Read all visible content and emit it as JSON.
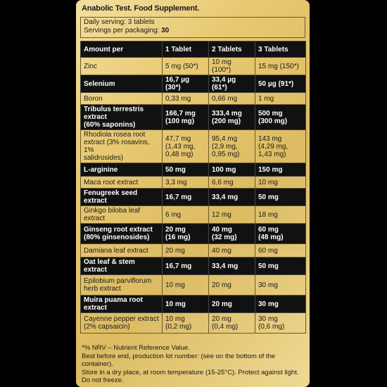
{
  "label": {
    "title": "Anabolic Test. Food Supplement.",
    "serving_line": "Daily serving: 3 tablets",
    "servings_prefix": "Servings per packaging: ",
    "servings_value": "30"
  },
  "table": {
    "headers": [
      "Amount per",
      "1 Tablet",
      "2 Tablets",
      "3 Tablets"
    ],
    "rows": [
      {
        "style": "light",
        "cells": [
          "Zinc",
          "5 mg (50*)",
          "10 mg (100*)",
          "15 mg (150*)"
        ]
      },
      {
        "style": "dark",
        "cells": [
          "Selenium",
          "16,7 µg (30*)",
          "33,4 µg (61*)",
          "50 µg (91*)"
        ]
      },
      {
        "style": "light",
        "cells": [
          "Boron",
          "0,33 mg",
          "0,66 mg",
          "1 mg"
        ]
      },
      {
        "style": "dark",
        "cells": [
          "Tribulus terrestris extract\n(60% saponins)",
          "166,7 mg\n(100 mg)",
          "333,4 mg\n(200 mg)",
          "500 mg\n(300 mg)"
        ]
      },
      {
        "style": "light",
        "cells": [
          "Rhodiola rosea root\nextract (3% rosavins, 1%\nsalidrosides)",
          "47,7 mg\n(1,43 mg,\n0,48 mg)",
          "95,4 mg\n(2,9 mg,\n0,95 mg)",
          "143 mg\n(4,29 mg,\n1,43 mg)"
        ]
      },
      {
        "style": "dark",
        "cells": [
          "L-arginine",
          "50 mg",
          "100 mg",
          "150 mg"
        ]
      },
      {
        "style": "light",
        "cells": [
          "Maca root extract",
          "3,3 mg",
          "6,6 mg",
          "10 mg"
        ]
      },
      {
        "style": "dark",
        "cells": [
          "Fenugreek seed extract",
          "16,7 mg",
          "33,4 mg",
          "50 mg"
        ]
      },
      {
        "style": "light",
        "cells": [
          "Ginkgo biloba leaf extract",
          "6 mg",
          "12 mg",
          "18 mg"
        ]
      },
      {
        "style": "dark",
        "cells": [
          "Ginseng root extract\n(80% ginsenosides)",
          "20 mg\n(16 mg)",
          "40 mg\n(32 mg)",
          "60 mg\n(48 mg)"
        ]
      },
      {
        "style": "light",
        "cells": [
          "Damiana leaf extract",
          "20 mg",
          "40 mg",
          "60 mg"
        ]
      },
      {
        "style": "dark",
        "cells": [
          "Oat leaf & stem extract",
          "16,7 mg",
          "33,4 mg",
          "50 mg"
        ]
      },
      {
        "style": "light",
        "cells": [
          "Epilobium parviflorum\nherb extract",
          "10 mg",
          "20 mg",
          "30 mg"
        ]
      },
      {
        "style": "dark",
        "cells": [
          "Muira puama root extract",
          "10 mg",
          "20 mg",
          "30 mg"
        ]
      },
      {
        "style": "light",
        "cells": [
          "Cayenne pepper extract\n(2% capsaicin)",
          "10 mg\n(0,2 mg)",
          "20 mg\n(0,4 mg)",
          "30 mg\n(0,6 mg)"
        ]
      }
    ]
  },
  "footer": {
    "nrv": "*% NRV – Nutrient Reference Value.",
    "best_before": "Best before end, production lot number: (see on the bottom of the container).",
    "storage": "Store in a dry place, at room temperature (15-25°C). Protect against light. Do not freeze."
  },
  "colors": {
    "panel": "#e3c56e",
    "dark_row": "#111111",
    "border": "#6b5a2a"
  }
}
